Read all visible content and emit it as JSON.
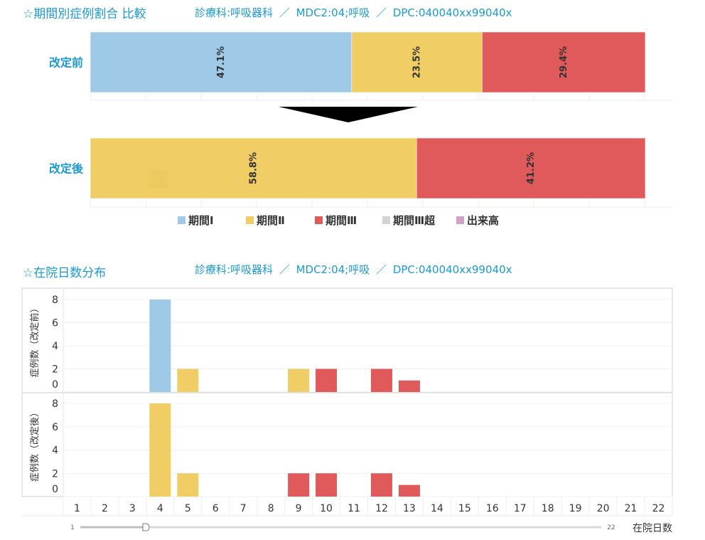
{
  "section1": {
    "title": "☆期間別症例割合 比較",
    "info": "診療科:呼吸器科 ／ MDC2:04;呼吸 ／ DPC:040040xx99040x"
  },
  "section2": {
    "title": "☆在院日数分布",
    "info": "診療科:呼吸器科 ／ MDC2:04;呼吸 ／ DPC:040040xx99040x"
  },
  "colors": {
    "period1": "#9ecae7",
    "period2": "#f0cd65",
    "period3": "#e05a5c",
    "period3plus": "#d3d3d3",
    "output": "#d4a0c8"
  },
  "chart_data": [
    {
      "type": "bar",
      "orientation": "horizontal-stacked-percent",
      "categories": [
        "改定前",
        "改定後"
      ],
      "series": [
        {
          "name": "期間Ⅰ",
          "color": "#9ecae7",
          "values": [
            47.1,
            0
          ],
          "labels": [
            "47.1%",
            ""
          ]
        },
        {
          "name": "期間Ⅱ",
          "color": "#f0cd65",
          "values": [
            23.5,
            58.8
          ],
          "labels": [
            "23.5%",
            "58.8%"
          ]
        },
        {
          "name": "期間Ⅲ",
          "color": "#e05a5c",
          "values": [
            29.4,
            41.2
          ],
          "labels": [
            "29.4%",
            "41.2%"
          ]
        },
        {
          "name": "期間Ⅲ超",
          "color": "#d3d3d3",
          "values": [
            0,
            0
          ],
          "labels": [
            "",
            ""
          ]
        },
        {
          "name": "出来高",
          "color": "#d4a0c8",
          "values": [
            0,
            0
          ],
          "labels": [
            "",
            ""
          ]
        }
      ],
      "xlim": [
        0,
        100
      ],
      "legend": "bottom"
    },
    {
      "type": "bar",
      "x": [
        1,
        2,
        3,
        4,
        5,
        6,
        7,
        8,
        9,
        10,
        11,
        12,
        13,
        14,
        15,
        16,
        17,
        18,
        19,
        20,
        21,
        22
      ],
      "xlabel": "在院日数",
      "yticks": [
        0,
        2,
        4,
        6,
        8
      ],
      "ylim": [
        0,
        8.6
      ],
      "panels": [
        {
          "ylabel": "症例数（改定前）",
          "bars": [
            {
              "x": 4,
              "value": 8,
              "color": "#9ecae7"
            },
            {
              "x": 5,
              "value": 2,
              "color": "#f0cd65"
            },
            {
              "x": 9,
              "value": 2,
              "color": "#f0cd65"
            },
            {
              "x": 10,
              "value": 2,
              "color": "#e05a5c"
            },
            {
              "x": 12,
              "value": 2,
              "color": "#e05a5c"
            },
            {
              "x": 13,
              "value": 1,
              "color": "#e05a5c"
            }
          ]
        },
        {
          "ylabel": "症例数（改定後）",
          "bars": [
            {
              "x": 4,
              "value": 8,
              "color": "#f0cd65"
            },
            {
              "x": 5,
              "value": 2,
              "color": "#f0cd65"
            },
            {
              "x": 9,
              "value": 2,
              "color": "#e05a5c"
            },
            {
              "x": 10,
              "value": 2,
              "color": "#e05a5c"
            },
            {
              "x": 12,
              "value": 2,
              "color": "#e05a5c"
            },
            {
              "x": 13,
              "value": 1,
              "color": "#e05a5c"
            }
          ]
        }
      ],
      "slider": {
        "min": "1",
        "max": "22"
      }
    }
  ]
}
